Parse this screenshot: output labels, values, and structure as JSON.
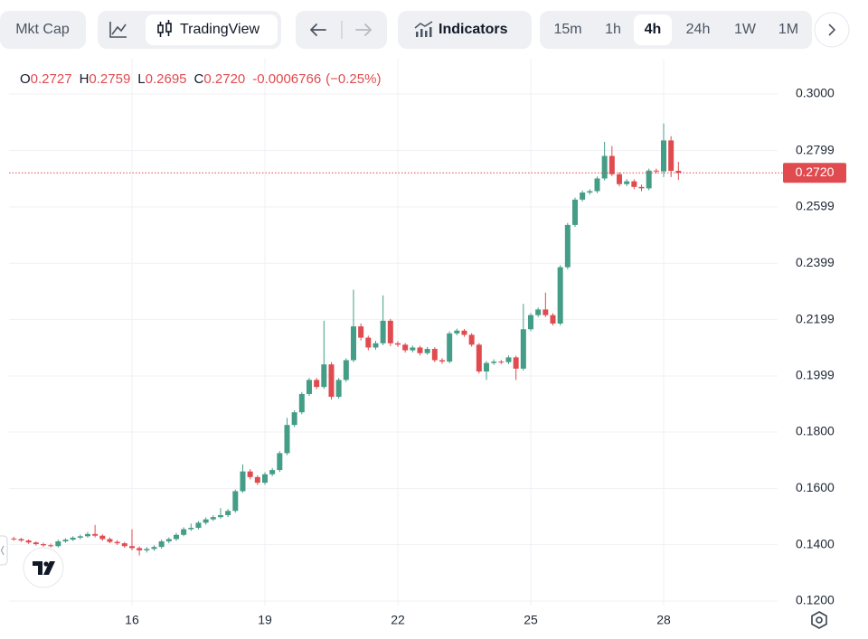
{
  "toolbar": {
    "mkt_cap": "Mkt Cap",
    "chart_type": "TradingView",
    "indicators": "Indicators",
    "intervals": [
      "15m",
      "1h",
      "4h",
      "24h",
      "1W",
      "1M"
    ],
    "selected_interval": 2
  },
  "chart_data": {
    "type": "candlestick",
    "legend": {
      "items": [
        {
          "key": "O",
          "value": "0.2727"
        },
        {
          "key": "H",
          "value": "0.2759"
        },
        {
          "key": "L",
          "value": "0.2695"
        },
        {
          "key": "C",
          "value": "0.2720"
        }
      ],
      "change": "-0.0006766",
      "change_pct": "(−0.25%)"
    },
    "last_price": 0.272,
    "last_price_label": "0.2720",
    "up_color": "#449d86",
    "down_color": "#e04b50",
    "grid": true,
    "ylim": [
      0.1184,
      0.3125
    ],
    "yticks": [
      {
        "value": 0.12,
        "label": "0.1200"
      },
      {
        "value": 0.14,
        "label": "0.1400"
      },
      {
        "value": 0.16,
        "label": "0.1600"
      },
      {
        "value": 0.18,
        "label": "0.1800"
      },
      0.1999,
      0.2199,
      0.2399,
      0.2599,
      0.2799,
      {
        "value": 0.3,
        "label": "0.3000"
      }
    ],
    "categories": [
      null,
      null,
      null,
      null,
      null,
      null,
      null,
      null,
      null,
      null,
      null,
      null,
      null,
      null,
      null,
      null,
      "16",
      null,
      null,
      null,
      null,
      null,
      null,
      null,
      null,
      null,
      null,
      null,
      null,
      null,
      null,
      null,
      null,
      null,
      "19",
      null,
      null,
      null,
      null,
      null,
      null,
      null,
      null,
      null,
      null,
      null,
      null,
      null,
      null,
      null,
      null,
      null,
      "22",
      null,
      null,
      null,
      null,
      null,
      null,
      null,
      null,
      null,
      null,
      null,
      null,
      null,
      null,
      null,
      null,
      null,
      "25",
      null,
      null,
      null,
      null,
      null,
      null,
      null,
      null,
      null,
      null,
      null,
      null,
      null,
      null,
      null,
      null,
      null,
      "28",
      null,
      null
    ],
    "open": [
      0.1422,
      0.142,
      0.1415,
      0.1408,
      0.1402,
      0.1398,
      0.1395,
      0.1412,
      0.1418,
      0.1425,
      0.143,
      0.1438,
      0.1432,
      0.142,
      0.141,
      0.1405,
      0.1395,
      0.1388,
      0.138,
      0.1385,
      0.1392,
      0.1412,
      0.142,
      0.1435,
      0.1455,
      0.146,
      0.1478,
      0.149,
      0.1498,
      0.1505,
      0.152,
      0.159,
      0.166,
      0.164,
      0.162,
      0.165,
      0.1665,
      0.1725,
      0.1825,
      0.187,
      0.1935,
      0.1985,
      0.196,
      0.204,
      0.1925,
      0.1985,
      0.2055,
      0.2175,
      0.2135,
      0.21,
      0.2115,
      0.2195,
      0.2115,
      0.211,
      0.209,
      0.21,
      0.208,
      0.2095,
      0.2055,
      0.205,
      0.215,
      0.216,
      0.2145,
      0.211,
      0.2015,
      0.2045,
      0.205,
      0.2048,
      0.2065,
      0.2025,
      0.2165,
      0.2215,
      0.2235,
      0.2215,
      0.2185,
      0.2385,
      0.2535,
      0.2625,
      0.265,
      0.2655,
      0.27,
      0.278,
      0.2715,
      0.268,
      0.269,
      0.267,
      0.2665,
      0.2728,
      0.2725,
      0.2835,
      0.2727
    ],
    "high": [
      0.1428,
      0.1424,
      0.1419,
      0.1412,
      0.1407,
      0.1404,
      0.1418,
      0.1423,
      0.143,
      0.1436,
      0.1445,
      0.147,
      0.1437,
      0.1426,
      0.1416,
      0.141,
      0.1455,
      0.1394,
      0.1392,
      0.1398,
      0.1418,
      0.1426,
      0.1442,
      0.1462,
      0.1475,
      0.1484,
      0.1497,
      0.1505,
      0.153,
      0.1527,
      0.1596,
      0.1685,
      0.1668,
      0.1646,
      0.1657,
      0.1672,
      0.1732,
      0.185,
      0.1877,
      0.1942,
      0.1992,
      0.1992,
      0.2195,
      0.2048,
      0.1992,
      0.2062,
      0.2305,
      0.2185,
      0.2142,
      0.2124,
      0.2285,
      0.2202,
      0.2122,
      0.2116,
      0.2107,
      0.2106,
      0.2102,
      0.2101,
      0.2062,
      0.2157,
      0.2167,
      0.2166,
      0.2151,
      0.2116,
      0.2052,
      0.2058,
      0.2056,
      0.2072,
      0.2071,
      0.2255,
      0.2222,
      0.2242,
      0.2295,
      0.2222,
      0.2392,
      0.2542,
      0.2632,
      0.2657,
      0.2662,
      0.2707,
      0.283,
      0.2815,
      0.2722,
      0.2698,
      0.2697,
      0.2678,
      0.2735,
      0.2735,
      0.2895,
      0.285,
      0.2759
    ],
    "low": [
      0.1414,
      0.141,
      0.1403,
      0.1397,
      0.1393,
      0.139,
      0.139,
      0.1407,
      0.1413,
      0.1419,
      0.1425,
      0.1426,
      0.1414,
      0.1405,
      0.1399,
      0.1389,
      0.138,
      0.1362,
      0.1372,
      0.1378,
      0.1386,
      0.1405,
      0.1414,
      0.143,
      0.1449,
      0.1454,
      0.1471,
      0.1484,
      0.1492,
      0.1498,
      0.1514,
      0.1584,
      0.1632,
      0.1612,
      0.1613,
      0.1643,
      0.1658,
      0.1718,
      0.1818,
      0.1863,
      0.1928,
      0.1952,
      0.1953,
      0.1915,
      0.1918,
      0.1978,
      0.2048,
      0.2125,
      0.209,
      0.2092,
      0.2108,
      0.2105,
      0.2102,
      0.2082,
      0.2083,
      0.2072,
      0.2074,
      0.2048,
      0.2042,
      0.2044,
      0.2143,
      0.2138,
      0.2103,
      0.2008,
      0.1985,
      0.2038,
      0.2041,
      0.2041,
      0.1985,
      0.2018,
      0.2158,
      0.2208,
      0.2208,
      0.2178,
      0.2178,
      0.2378,
      0.2528,
      0.2618,
      0.2643,
      0.2648,
      0.2693,
      0.2708,
      0.2672,
      0.2673,
      0.2662,
      0.2655,
      0.2658,
      0.2718,
      0.2705,
      0.2705,
      0.2695
    ],
    "close": [
      0.142,
      0.1415,
      0.1408,
      0.1402,
      0.1398,
      0.1395,
      0.1412,
      0.1418,
      0.1425,
      0.143,
      0.1438,
      0.1432,
      0.142,
      0.141,
      0.1405,
      0.1395,
      0.1388,
      0.138,
      0.1385,
      0.1392,
      0.1412,
      0.142,
      0.1435,
      0.1455,
      0.146,
      0.1478,
      0.149,
      0.1498,
      0.1505,
      0.152,
      0.159,
      0.166,
      0.164,
      0.162,
      0.165,
      0.1665,
      0.1725,
      0.1825,
      0.187,
      0.1935,
      0.1985,
      0.196,
      0.204,
      0.1925,
      0.1985,
      0.2055,
      0.2175,
      0.2135,
      0.21,
      0.2115,
      0.2195,
      0.2115,
      0.211,
      0.209,
      0.21,
      0.208,
      0.2095,
      0.2055,
      0.205,
      0.215,
      0.216,
      0.2145,
      0.211,
      0.2015,
      0.2045,
      0.205,
      0.2048,
      0.2065,
      0.2025,
      0.2165,
      0.2215,
      0.2235,
      0.2215,
      0.2185,
      0.2385,
      0.2535,
      0.2625,
      0.265,
      0.2655,
      0.27,
      0.278,
      0.2715,
      0.268,
      0.269,
      0.267,
      0.2665,
      0.2728,
      0.2725,
      0.2835,
      0.2727,
      0.272
    ]
  }
}
